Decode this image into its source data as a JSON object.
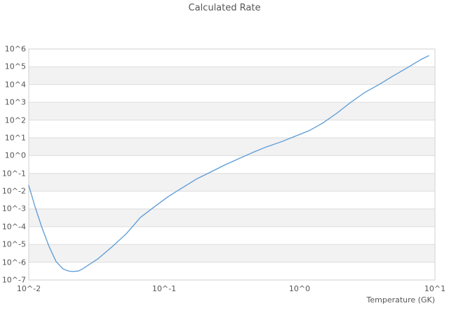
{
  "title": "Calculated Rate",
  "axes": {
    "x": {
      "title": "Temperature (GK)",
      "scale": "log",
      "tick_labels": [
        "10^-2",
        "10^-1",
        "10^0",
        "10^1"
      ],
      "range": [
        0.01,
        10
      ]
    },
    "y": {
      "title": "",
      "scale": "log",
      "tick_labels": [
        "10^6",
        "10^5",
        "10^4",
        "10^3",
        "10^2",
        "10^1",
        "10^0",
        "10^-1",
        "10^-2",
        "10^-3",
        "10^-4",
        "10^-5",
        "10^-6",
        "10^-7"
      ],
      "range": [
        1e-07,
        1000000.0
      ]
    }
  },
  "colors": {
    "line": "#5b9bd5",
    "band_gray": "#f2f2f2",
    "band_white": "#ffffff",
    "gridline": "#dcdcdc",
    "border": "#d0d0d0",
    "text": "#555555",
    "background": "#ffffff"
  },
  "chart_data": {
    "type": "line",
    "title": "Calculated Rate",
    "xlabel": "Temperature (GK)",
    "ylabel": "",
    "x_scale": "log",
    "y_scale": "log",
    "xlim": [
      0.01,
      10
    ],
    "ylim": [
      1e-07,
      1000000.0
    ],
    "grid": "horizontal-decade-bands",
    "legend": "none",
    "series": [
      {
        "name": "calculated-rate",
        "points": [
          [
            0.01,
            0.021
          ],
          [
            0.0111,
            0.0014
          ],
          [
            0.0125,
            9.1e-05
          ],
          [
            0.0141,
            7.9e-06
          ],
          [
            0.0159,
            1.1e-06
          ],
          [
            0.0179,
            4.2e-07
          ],
          [
            0.0194,
            3.3e-07
          ],
          [
            0.0209,
            3e-07
          ],
          [
            0.0233,
            3.2e-07
          ],
          [
            0.0252,
            4.4e-07
          ],
          [
            0.0272,
            6.5e-07
          ],
          [
            0.0326,
            1.6e-06
          ],
          [
            0.0414,
            7.6e-06
          ],
          [
            0.0525,
            4e-05
          ],
          [
            0.0667,
            0.00033
          ],
          [
            0.0845,
            0.0013
          ],
          [
            0.107,
            0.0049
          ],
          [
            0.137,
            0.016
          ],
          [
            0.173,
            0.048
          ],
          [
            0.22,
            0.118
          ],
          [
            0.279,
            0.292
          ],
          [
            0.354,
            0.66
          ],
          [
            0.45,
            1.49
          ],
          [
            0.57,
            3.1
          ],
          [
            0.724,
            5.8
          ],
          [
            0.92,
            12.0
          ],
          [
            1.17,
            24.8
          ],
          [
            1.48,
            67
          ],
          [
            1.88,
            240
          ],
          [
            2.39,
            1000.0
          ],
          [
            3.03,
            3600.0
          ],
          [
            3.85,
            9800.0
          ],
          [
            4.89,
            30000.0
          ],
          [
            6.21,
            86000.0
          ],
          [
            7.87,
            256000.0
          ],
          [
            9.0,
            420000.0
          ]
        ]
      }
    ]
  }
}
